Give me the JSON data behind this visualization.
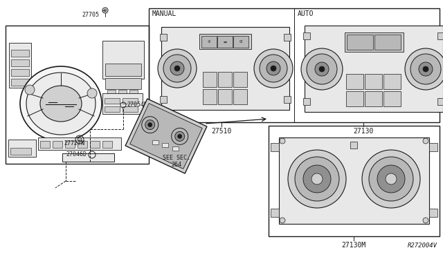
{
  "bg_color": "#ffffff",
  "line_color": "#1a1a1a",
  "gray1": "#e8e8e8",
  "gray2": "#d0d0d0",
  "gray3": "#b8b8b8",
  "gray4": "#909090",
  "figure_ref": "R272004V",
  "labels": {
    "manual": "MANUAL",
    "auto": "AUTO",
    "part_27510": "27510",
    "part_27130": "27130",
    "part_27130M": "27130M",
    "part_27705": "27705",
    "part_27054M": "27054M",
    "part_27727N": "27727N",
    "part_27046D": "27046D",
    "see_sec": "SEE SEC.\n264"
  }
}
